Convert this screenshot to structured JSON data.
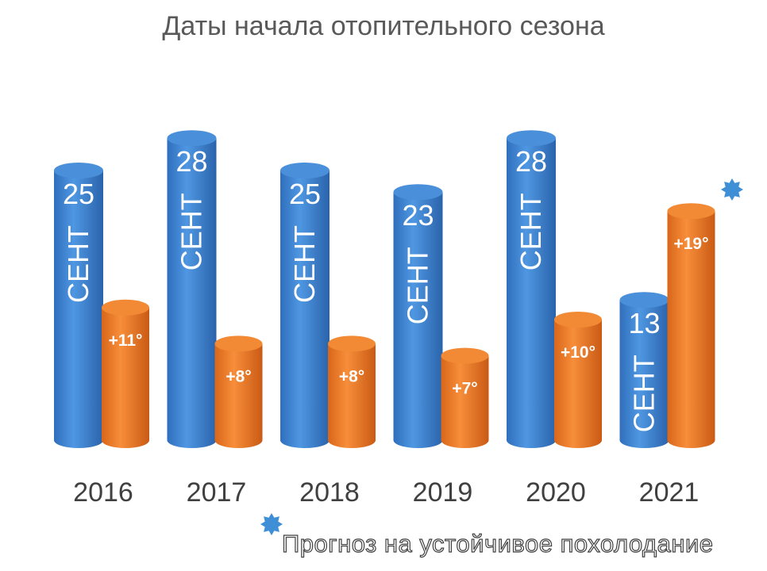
{
  "title": "Даты начала отопительного сезона",
  "colors": {
    "blue": "#3b7fcf",
    "orange": "#ef7b22",
    "star": "#3f8fd6"
  },
  "chart_data": {
    "type": "bar",
    "categories": [
      "2016",
      "2017",
      "2018",
      "2019",
      "2020",
      "2021"
    ],
    "series": [
      {
        "values": [
          25,
          28,
          25,
          23,
          28,
          13
        ],
        "labels": [
          "25",
          "28",
          "25",
          "23",
          "28",
          "13"
        ],
        "unit_label": "СЕНТ"
      },
      {
        "values": [
          11,
          8,
          8,
          7,
          10,
          19
        ],
        "labels": [
          "+11°",
          "+8°",
          "+8°",
          "+7°",
          "+10°",
          "+19°"
        ]
      }
    ],
    "marked_category": "2021"
  },
  "footnote": "Прогноз на устойчивое похолодание"
}
